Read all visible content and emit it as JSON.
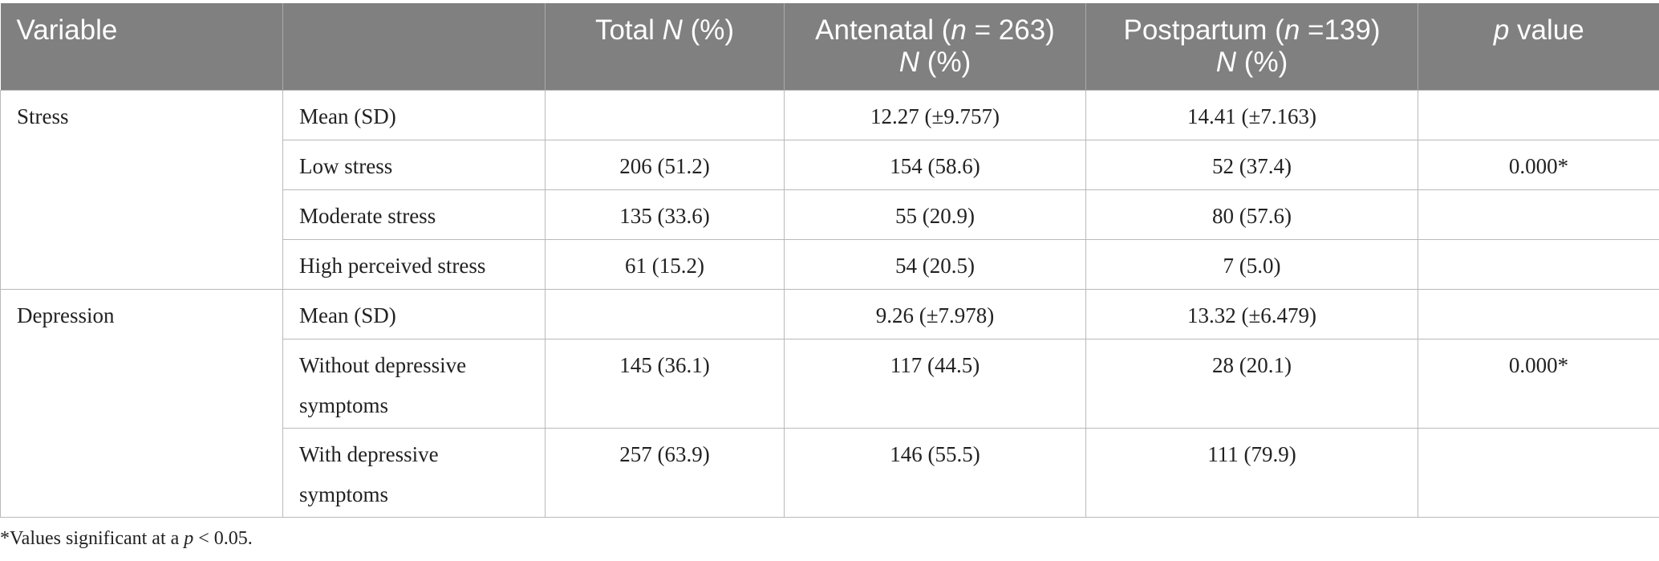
{
  "header": {
    "variable": "Variable",
    "sub": "",
    "total_pre": "Total ",
    "total_n": "N",
    "total_post": " (%)",
    "ante_pre": "Antenatal (",
    "ante_n": "n",
    "ante_post": " = 263)",
    "ante_n2": "N",
    "ante_pct": " (%)",
    "post_pre": "Postpartum (",
    "post_n": "n",
    "post_post": " =139)",
    "post_n2": "N",
    "post_pct": " (%)",
    "p_ital": "p",
    "p_post": " value"
  },
  "groups": [
    {
      "variable": "Stress",
      "rows": [
        {
          "label": "Mean (SD)",
          "total": "",
          "antenatal": "12.27 (±9.757)",
          "postpartum": "14.41 (±7.163)",
          "p": ""
        },
        {
          "label": "Low stress",
          "total": "206 (51.2)",
          "antenatal": "154 (58.6)",
          "postpartum": "52 (37.4)",
          "p": "0.000*"
        },
        {
          "label": "Moderate stress",
          "total": "135 (33.6)",
          "antenatal": "55 (20.9)",
          "postpartum": "80 (57.6)",
          "p": ""
        },
        {
          "label": "High perceived stress",
          "total": "61 (15.2)",
          "antenatal": "54 (20.5)",
          "postpartum": "7 (5.0)",
          "p": ""
        }
      ]
    },
    {
      "variable": "Depression",
      "rows": [
        {
          "label": "Mean (SD)",
          "total": "",
          "antenatal": "9.26 (±7.978)",
          "postpartum": "13.32 (±6.479)",
          "p": ""
        },
        {
          "label": "Without depressive symptoms",
          "total": "145 (36.1)",
          "antenatal": "117 (44.5)",
          "postpartum": "28 (20.1)",
          "p": "0.000*"
        },
        {
          "label": "With depressive symptoms",
          "total": "257 (63.9)",
          "antenatal": "146 (55.5)",
          "postpartum": "111 (79.9)",
          "p": ""
        }
      ]
    }
  ],
  "footnote": {
    "pre": "*Values significant at a ",
    "p": "p",
    "post": " < 0.05."
  }
}
